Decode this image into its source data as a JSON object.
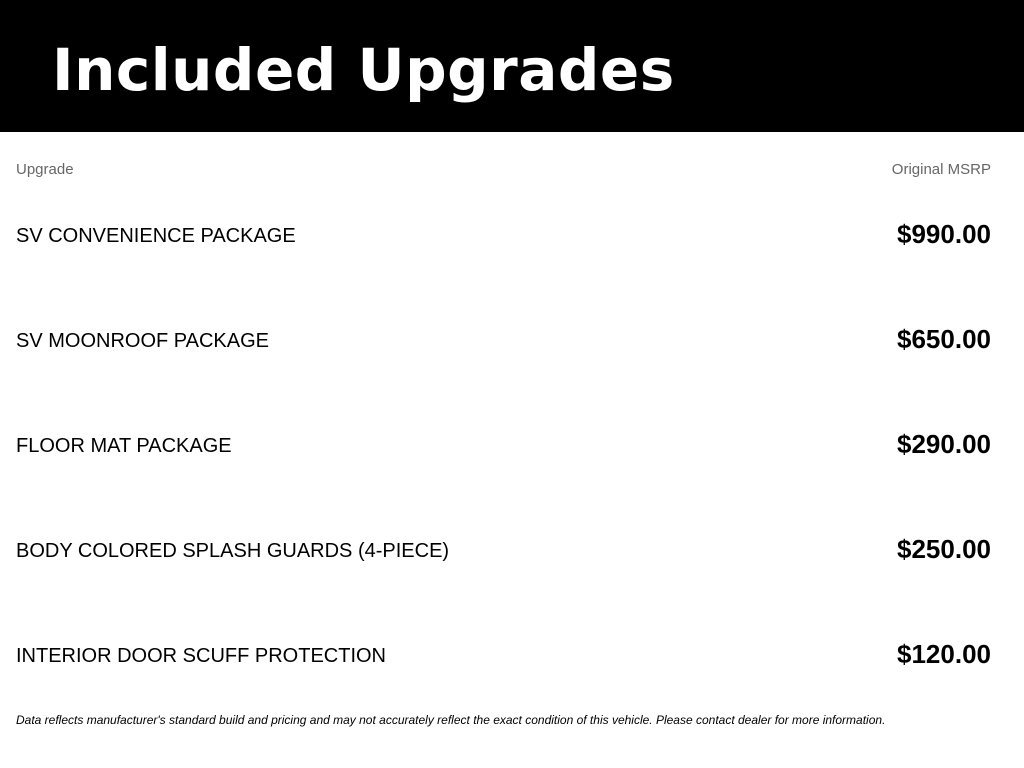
{
  "header": {
    "title": "Included Upgrades"
  },
  "table": {
    "columns": {
      "upgrade": "Upgrade",
      "msrp": "Original MSRP"
    },
    "rows": [
      {
        "name": "SV CONVENIENCE PACKAGE",
        "price": "$990.00"
      },
      {
        "name": "SV MOONROOF PACKAGE",
        "price": "$650.00"
      },
      {
        "name": "FLOOR MAT PACKAGE",
        "price": "$290.00"
      },
      {
        "name": "BODY COLORED SPLASH GUARDS (4-PIECE)",
        "price": "$250.00"
      },
      {
        "name": "INTERIOR DOOR SCUFF PROTECTION",
        "price": "$120.00"
      }
    ]
  },
  "footer": {
    "disclaimer": "Data reflects manufacturer's standard build and pricing and may not accurately reflect the exact condition of this vehicle. Please contact dealer for more information."
  }
}
